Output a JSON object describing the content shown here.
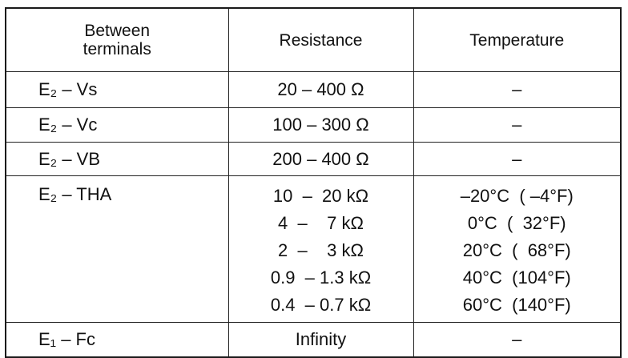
{
  "header": {
    "between_terminals": "Between\nterminals",
    "resistance": "Resistance",
    "temperature": "Temperature"
  },
  "rows": [
    {
      "terminals": "E₂  –  Vs",
      "resistance": "20  –  400 Ω",
      "temperature": "–"
    },
    {
      "terminals": "E₂  –  Vc",
      "resistance": "100  –  300 Ω",
      "temperature": "–"
    },
    {
      "terminals": "E₂  –  VB",
      "resistance": "200  –  400 Ω",
      "temperature": "–"
    },
    {
      "terminals": "E₂  –  THA",
      "resistance": [
        "10  –  20 kΩ",
        "4  –    7 kΩ",
        "2  –    3 kΩ",
        "0.9  – 1.3 kΩ",
        "0.4  – 0.7 kΩ"
      ],
      "temperature": [
        "–20°C  ( –4°F)",
        "0°C  (  32°F)",
        "20°C  (  68°F)",
        "40°C  (104°F)",
        "60°C  (140°F)"
      ]
    },
    {
      "terminals": "E₁  –  Fc",
      "resistance": "Infinity",
      "temperature": "–"
    }
  ]
}
